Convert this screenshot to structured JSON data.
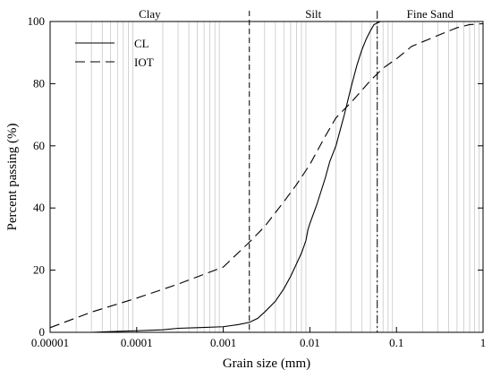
{
  "chart_data": {
    "type": "line",
    "xscale": "log",
    "xlabel": "Grain size (mm)",
    "ylabel": "Percent passing (%)",
    "xlim": [
      1e-05,
      1
    ],
    "ylim": [
      0,
      100
    ],
    "x_ticks": [
      {
        "value": 1e-05,
        "label": "0.00001"
      },
      {
        "value": 0.0001,
        "label": "0.0001"
      },
      {
        "value": 0.001,
        "label": "0.001"
      },
      {
        "value": 0.01,
        "label": "0.01"
      },
      {
        "value": 0.1,
        "label": "0.1"
      },
      {
        "value": 1,
        "label": "1"
      }
    ],
    "y_ticks": [
      {
        "value": 0,
        "label": "0"
      },
      {
        "value": 20,
        "label": "20"
      },
      {
        "value": 40,
        "label": "40"
      },
      {
        "value": 60,
        "label": "60"
      },
      {
        "value": 80,
        "label": "80"
      },
      {
        "value": 100,
        "label": "100"
      }
    ],
    "grid": "vertical minor lines",
    "legend": {
      "placement": "top-left"
    },
    "regions": [
      {
        "label": "Clay",
        "from": 1e-05,
        "to": 0.002
      },
      {
        "label": "Silt",
        "from": 0.002,
        "to": 0.06
      },
      {
        "label": "Fine Sand",
        "from": 0.06,
        "to": 1
      }
    ],
    "boundaries": [
      {
        "x": 0.002,
        "style": "dashed"
      },
      {
        "x": 0.06,
        "style": "dash-dot"
      }
    ],
    "series": [
      {
        "name": "CL",
        "style": "solid",
        "points": [
          [
            3e-05,
            0
          ],
          [
            6e-05,
            0.3
          ],
          [
            0.0001,
            0.5
          ],
          [
            0.0002,
            0.8
          ],
          [
            0.0003,
            1.3
          ],
          [
            0.0005,
            1.5
          ],
          [
            0.001,
            1.8
          ],
          [
            0.0015,
            2.5
          ],
          [
            0.002,
            3.2
          ],
          [
            0.0025,
            4.5
          ],
          [
            0.003,
            6.5
          ],
          [
            0.004,
            10
          ],
          [
            0.005,
            14
          ],
          [
            0.006,
            18
          ],
          [
            0.007,
            22
          ],
          [
            0.008,
            25.5
          ],
          [
            0.009,
            29.5
          ],
          [
            0.0095,
            33
          ],
          [
            0.01,
            35
          ],
          [
            0.012,
            41
          ],
          [
            0.015,
            49.5
          ],
          [
            0.017,
            55
          ],
          [
            0.02,
            60
          ],
          [
            0.025,
            70
          ],
          [
            0.03,
            79
          ],
          [
            0.035,
            86
          ],
          [
            0.04,
            91
          ],
          [
            0.045,
            94.5
          ],
          [
            0.05,
            97
          ],
          [
            0.055,
            99
          ],
          [
            0.06,
            99.5
          ],
          [
            0.065,
            100
          ]
        ]
      },
      {
        "name": "IOT",
        "style": "dashed",
        "points": [
          [
            1e-05,
            1.5
          ],
          [
            3e-05,
            6.5
          ],
          [
            0.0001,
            11
          ],
          [
            0.0003,
            15.5
          ],
          [
            0.001,
            21
          ],
          [
            0.002,
            29
          ],
          [
            0.003,
            34
          ],
          [
            0.005,
            42
          ],
          [
            0.007,
            47.5
          ],
          [
            0.01,
            54
          ],
          [
            0.015,
            63
          ],
          [
            0.02,
            69
          ],
          [
            0.03,
            74
          ],
          [
            0.05,
            81
          ],
          [
            0.07,
            85
          ],
          [
            0.1,
            88
          ],
          [
            0.15,
            92
          ],
          [
            0.3,
            95.5
          ],
          [
            0.5,
            98
          ],
          [
            0.7,
            99
          ],
          [
            1,
            99.3
          ]
        ]
      }
    ]
  }
}
